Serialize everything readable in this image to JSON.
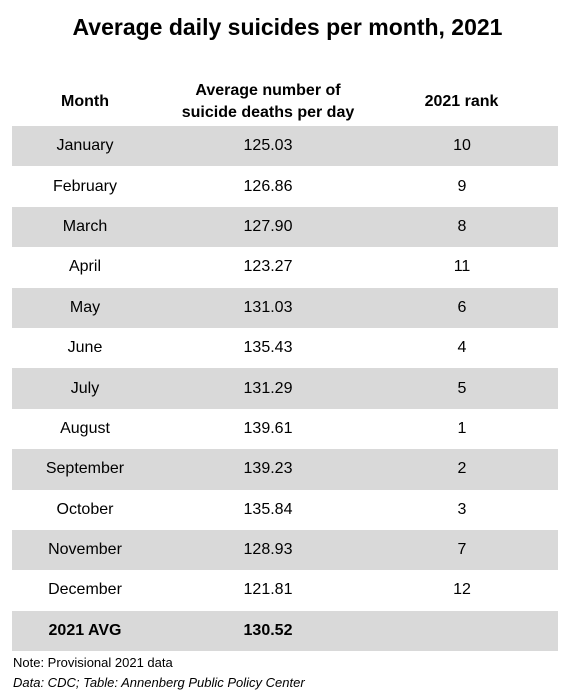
{
  "title": "Average daily suicides per month, 2021",
  "headers": {
    "month": "Month",
    "avg_line1": "Average number of",
    "avg_line2": "suicide deaths per day",
    "rank": "2021 rank"
  },
  "rows": [
    {
      "month": "January",
      "avg": "125.03",
      "rank": "10"
    },
    {
      "month": "February",
      "avg": "126.86",
      "rank": "9"
    },
    {
      "month": "March",
      "avg": "127.90",
      "rank": "8"
    },
    {
      "month": "April",
      "avg": "123.27",
      "rank": "11"
    },
    {
      "month": "May",
      "avg": "131.03",
      "rank": "6"
    },
    {
      "month": "June",
      "avg": "135.43",
      "rank": "4"
    },
    {
      "month": "July",
      "avg": "131.29",
      "rank": "5"
    },
    {
      "month": "August",
      "avg": "139.61",
      "rank": "1"
    },
    {
      "month": "September",
      "avg": "139.23",
      "rank": "2"
    },
    {
      "month": "October",
      "avg": "135.84",
      "rank": "3"
    },
    {
      "month": "November",
      "avg": "128.93",
      "rank": "7"
    },
    {
      "month": "December",
      "avg": "121.81",
      "rank": "12"
    }
  ],
  "total": {
    "label": "2021 AVG",
    "avg": "130.52",
    "rank": ""
  },
  "note": "Note: Provisional 2021 data",
  "source": "Data: CDC; Table: Annenberg Public Policy Center",
  "colors": {
    "row_shade": "#d9d9d9",
    "background": "#ffffff"
  }
}
